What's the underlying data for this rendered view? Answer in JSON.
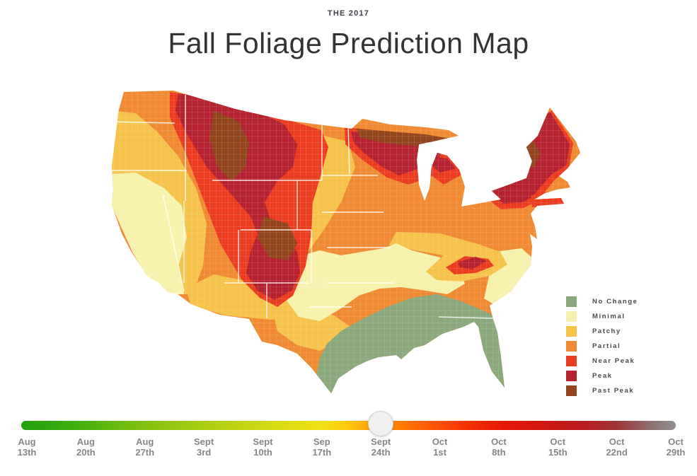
{
  "header": {
    "kicker": "THE 2017",
    "title": "Fall Foliage Prediction Map"
  },
  "palette": {
    "no_change": "#8aa87b",
    "minimal": "#f7f1ae",
    "patchy": "#f6c34a",
    "partial": "#ef8a33",
    "near_peak": "#ea3c20",
    "peak": "#b52330",
    "past_peak": "#93451e",
    "county_line": "#ffffff",
    "state_line": "#ffffff"
  },
  "legend": {
    "items": [
      {
        "key": "no_change",
        "label": "No Change"
      },
      {
        "key": "minimal",
        "label": "Minimal"
      },
      {
        "key": "patchy",
        "label": "Patchy"
      },
      {
        "key": "partial",
        "label": "Partial"
      },
      {
        "key": "near_peak",
        "label": "Near Peak"
      },
      {
        "key": "peak",
        "label": "Peak"
      },
      {
        "key": "past_peak",
        "label": "Past Peak"
      }
    ]
  },
  "timeline": {
    "selected_index": 6,
    "selected_label": "Sept 24th",
    "ticks": [
      {
        "line1": "Aug",
        "line2": "13th"
      },
      {
        "line1": "Aug",
        "line2": "20th"
      },
      {
        "line1": "Aug",
        "line2": "27th"
      },
      {
        "line1": "Sept",
        "line2": "3rd"
      },
      {
        "line1": "Sept",
        "line2": "10th"
      },
      {
        "line1": "Sep",
        "line2": "17th"
      },
      {
        "line1": "Sept",
        "line2": "24th"
      },
      {
        "line1": "Oct",
        "line2": "1st"
      },
      {
        "line1": "Oct",
        "line2": "8th"
      },
      {
        "line1": "Oct",
        "line2": "15th"
      },
      {
        "line1": "Oct",
        "line2": "22nd"
      },
      {
        "line1": "Oct",
        "line2": "29th"
      }
    ],
    "gradient": [
      {
        "o": 0,
        "c": "#21a10b"
      },
      {
        "o": 8,
        "c": "#3fae0e"
      },
      {
        "o": 18,
        "c": "#7dbf10"
      },
      {
        "o": 28,
        "c": "#abce12"
      },
      {
        "o": 38,
        "c": "#d3da13"
      },
      {
        "o": 46,
        "c": "#f0e112"
      },
      {
        "o": 50,
        "c": "#fdc70e"
      },
      {
        "o": 54,
        "c": "#fd9b07"
      },
      {
        "o": 58,
        "c": "#fd7d04"
      },
      {
        "o": 63,
        "c": "#fb5603"
      },
      {
        "o": 68,
        "c": "#f63205"
      },
      {
        "o": 74,
        "c": "#e51708"
      },
      {
        "o": 80,
        "c": "#cf1713"
      },
      {
        "o": 86,
        "c": "#b61e1e"
      },
      {
        "o": 91,
        "c": "#a03535"
      },
      {
        "o": 96,
        "c": "#8e6f6f"
      },
      {
        "o": 100,
        "c": "#909090"
      }
    ]
  }
}
